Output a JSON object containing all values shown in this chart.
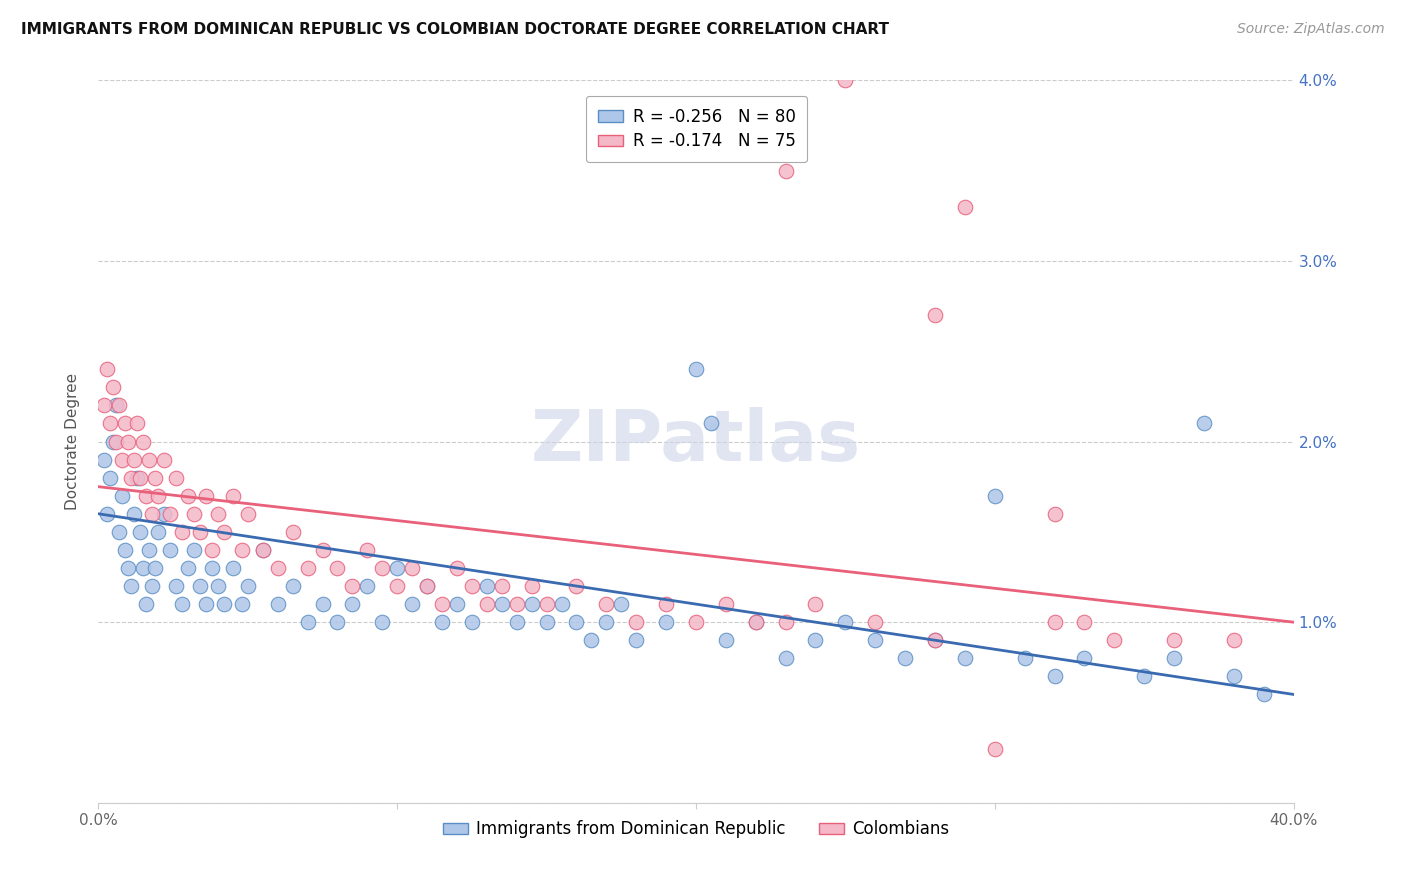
{
  "title": "IMMIGRANTS FROM DOMINICAN REPUBLIC VS COLOMBIAN DOCTORATE DEGREE CORRELATION CHART",
  "source": "Source: ZipAtlas.com",
  "ylabel": "Doctorate Degree",
  "x_min": 0.0,
  "x_max": 0.4,
  "y_min": 0.0,
  "y_max": 0.04,
  "blue_line_start_y": 0.016,
  "blue_line_end_y": 0.006,
  "pink_line_start_y": 0.0175,
  "pink_line_end_y": 0.01,
  "blue_color": "#aec6e8",
  "pink_color": "#f4b8c8",
  "blue_edge_color": "#5b8ec4",
  "pink_edge_color": "#e8607a",
  "blue_line_color": "#3a6ab0",
  "pink_line_color": "#e8607a",
  "legend_text_blue": "R = -0.256   N = 80",
  "legend_text_pink": "R = -0.174   N = 75",
  "legend_label_dr": "Immigrants from Dominican Republic",
  "legend_label_col": "Colombians",
  "watermark": "ZIPatlas",
  "title_fontsize": 11,
  "source_fontsize": 10,
  "axis_label_fontsize": 11,
  "tick_fontsize": 11,
  "legend_fontsize": 12,
  "watermark_fontsize": 52,
  "watermark_color": "#ccd5e8",
  "background_color": "#ffffff",
  "grid_color": "#cccccc",
  "right_axis_color": "#4472c4",
  "scatter_size": 110,
  "blue_x": [
    0.002,
    0.003,
    0.004,
    0.005,
    0.006,
    0.007,
    0.008,
    0.009,
    0.01,
    0.011,
    0.012,
    0.013,
    0.014,
    0.015,
    0.016,
    0.017,
    0.018,
    0.019,
    0.02,
    0.022,
    0.024,
    0.026,
    0.028,
    0.03,
    0.032,
    0.034,
    0.036,
    0.038,
    0.04,
    0.042,
    0.045,
    0.048,
    0.05,
    0.055,
    0.06,
    0.065,
    0.07,
    0.075,
    0.08,
    0.085,
    0.09,
    0.095,
    0.1,
    0.105,
    0.11,
    0.115,
    0.12,
    0.125,
    0.13,
    0.135,
    0.14,
    0.145,
    0.15,
    0.155,
    0.16,
    0.165,
    0.17,
    0.175,
    0.18,
    0.19,
    0.2,
    0.205,
    0.21,
    0.22,
    0.23,
    0.24,
    0.25,
    0.26,
    0.27,
    0.28,
    0.29,
    0.3,
    0.31,
    0.32,
    0.33,
    0.35,
    0.36,
    0.37,
    0.38,
    0.39
  ],
  "blue_y": [
    0.019,
    0.016,
    0.018,
    0.02,
    0.022,
    0.015,
    0.017,
    0.014,
    0.013,
    0.012,
    0.016,
    0.018,
    0.015,
    0.013,
    0.011,
    0.014,
    0.012,
    0.013,
    0.015,
    0.016,
    0.014,
    0.012,
    0.011,
    0.013,
    0.014,
    0.012,
    0.011,
    0.013,
    0.012,
    0.011,
    0.013,
    0.011,
    0.012,
    0.014,
    0.011,
    0.012,
    0.01,
    0.011,
    0.01,
    0.011,
    0.012,
    0.01,
    0.013,
    0.011,
    0.012,
    0.01,
    0.011,
    0.01,
    0.012,
    0.011,
    0.01,
    0.011,
    0.01,
    0.011,
    0.01,
    0.009,
    0.01,
    0.011,
    0.009,
    0.01,
    0.024,
    0.021,
    0.009,
    0.01,
    0.008,
    0.009,
    0.01,
    0.009,
    0.008,
    0.009,
    0.008,
    0.017,
    0.008,
    0.007,
    0.008,
    0.007,
    0.008,
    0.021,
    0.007,
    0.006
  ],
  "pink_x": [
    0.002,
    0.003,
    0.004,
    0.005,
    0.006,
    0.007,
    0.008,
    0.009,
    0.01,
    0.011,
    0.012,
    0.013,
    0.014,
    0.015,
    0.016,
    0.017,
    0.018,
    0.019,
    0.02,
    0.022,
    0.024,
    0.026,
    0.028,
    0.03,
    0.032,
    0.034,
    0.036,
    0.038,
    0.04,
    0.042,
    0.045,
    0.048,
    0.05,
    0.055,
    0.06,
    0.065,
    0.07,
    0.075,
    0.08,
    0.085,
    0.09,
    0.095,
    0.1,
    0.105,
    0.11,
    0.115,
    0.12,
    0.125,
    0.13,
    0.135,
    0.14,
    0.145,
    0.15,
    0.16,
    0.17,
    0.18,
    0.19,
    0.2,
    0.21,
    0.22,
    0.23,
    0.24,
    0.26,
    0.28,
    0.3,
    0.32,
    0.34,
    0.36,
    0.38,
    0.23,
    0.28,
    0.32,
    0.25,
    0.29,
    0.33
  ],
  "pink_y": [
    0.022,
    0.024,
    0.021,
    0.023,
    0.02,
    0.022,
    0.019,
    0.021,
    0.02,
    0.018,
    0.019,
    0.021,
    0.018,
    0.02,
    0.017,
    0.019,
    0.016,
    0.018,
    0.017,
    0.019,
    0.016,
    0.018,
    0.015,
    0.017,
    0.016,
    0.015,
    0.017,
    0.014,
    0.016,
    0.015,
    0.017,
    0.014,
    0.016,
    0.014,
    0.013,
    0.015,
    0.013,
    0.014,
    0.013,
    0.012,
    0.014,
    0.013,
    0.012,
    0.013,
    0.012,
    0.011,
    0.013,
    0.012,
    0.011,
    0.012,
    0.011,
    0.012,
    0.011,
    0.012,
    0.011,
    0.01,
    0.011,
    0.01,
    0.011,
    0.01,
    0.01,
    0.011,
    0.01,
    0.009,
    0.003,
    0.01,
    0.009,
    0.009,
    0.009,
    0.035,
    0.027,
    0.016,
    0.04,
    0.033,
    0.01
  ]
}
